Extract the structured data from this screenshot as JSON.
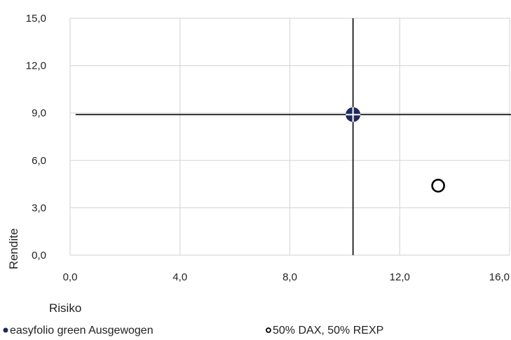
{
  "chart_data": {
    "type": "scatter",
    "title": "",
    "xlabel": "Risiko",
    "ylabel": "Rendite",
    "xlim": [
      0,
      16
    ],
    "ylim": [
      0,
      15
    ],
    "x_ticks": [
      "0,0",
      "4,0",
      "8,0",
      "12,0",
      "16,0"
    ],
    "y_ticks": [
      "0,0",
      "3,0",
      "6,0",
      "9,0",
      "12,0",
      "15,0"
    ],
    "grid": true,
    "legend_position": "bottom",
    "series": [
      {
        "name": "easyfolio green Ausgewogen",
        "x": 10.3,
        "y": 8.9,
        "color": "#1f2a5c",
        "marker": "filled-circle-crosshair"
      },
      {
        "name": "50% DAX, 50% REXP",
        "x": 13.4,
        "y": 4.4,
        "color": "#000000",
        "marker": "hollow-circle"
      }
    ],
    "crosshair": {
      "x": 10.3,
      "y": 8.9,
      "color": "#000000"
    }
  }
}
